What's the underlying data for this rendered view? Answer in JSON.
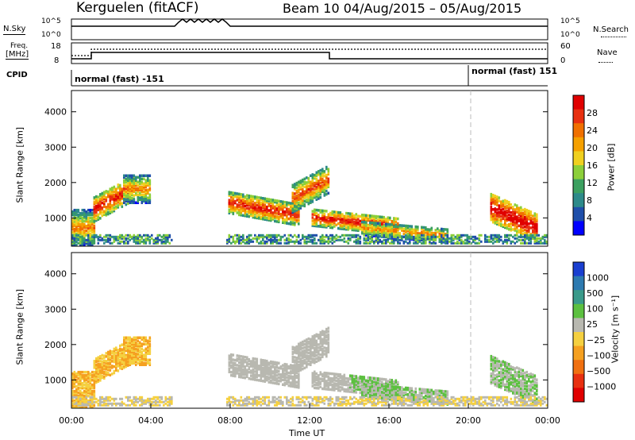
{
  "header": {
    "station": "Kerguelen (fitACF)",
    "beam_period": "Beam 10 04/Aug/2015 – 05/Aug/2015"
  },
  "noise_panel": {
    "left_label": "N.Sky",
    "right_label": "N.Search",
    "left_ticks": [
      "10^5",
      "10^0"
    ],
    "right_ticks": [
      "10^5",
      "10^0"
    ]
  },
  "freq_panel": {
    "left_label_1": "Freq.",
    "left_label_2": "[MHz]",
    "right_label": "Nave",
    "left_ticks": [
      "18",
      "8"
    ],
    "right_ticks": [
      "60",
      "0"
    ]
  },
  "cpid": {
    "label": "CPID",
    "segments": [
      {
        "text": "normal (fast) -151",
        "start_hour": 0
      },
      {
        "text": "normal (fast) 151",
        "start_hour": 20
      }
    ]
  },
  "chart_data": [
    {
      "type": "heatmap",
      "name": "power",
      "ylabel": "Slant Range [km]",
      "yticks": [
        "1000",
        "2000",
        "3000",
        "4000"
      ],
      "ylim": [
        200,
        4600
      ],
      "colorbar_label": "Power [dB]",
      "colorbar_ticks": [
        "4",
        "8",
        "12",
        "16",
        "20",
        "24",
        "28"
      ],
      "colors": [
        "#0000ff",
        "#1f4faa",
        "#2d8a8a",
        "#3ca060",
        "#8ccf3a",
        "#f0d020",
        "#f5a000",
        "#f07000",
        "#e83010",
        "#e00000"
      ]
    },
    {
      "type": "heatmap",
      "name": "velocity",
      "ylabel": "Slant Range [km]",
      "yticks": [
        "1000",
        "2000",
        "3000",
        "4000"
      ],
      "ylim": [
        200,
        4600
      ],
      "colorbar_label": "Velocity [m s⁻¹]",
      "colorbar_ticks": [
        "1000",
        "500",
        "100",
        "25",
        "−25",
        "−100",
        "−500",
        "−1000"
      ],
      "colors": [
        "#1a3fd0",
        "#2d7ab0",
        "#3a9a8a",
        "#5cc040",
        "#b8b8b0",
        "#f5d040",
        "#f5a020",
        "#f07010",
        "#e83010",
        "#e00000"
      ]
    }
  ],
  "x_axis": {
    "ticks": [
      "00:00",
      "04:00",
      "08:00",
      "12:00",
      "16:00",
      "20:00",
      "00:00"
    ],
    "label": "Time UT",
    "range_hours": [
      0,
      24
    ]
  }
}
